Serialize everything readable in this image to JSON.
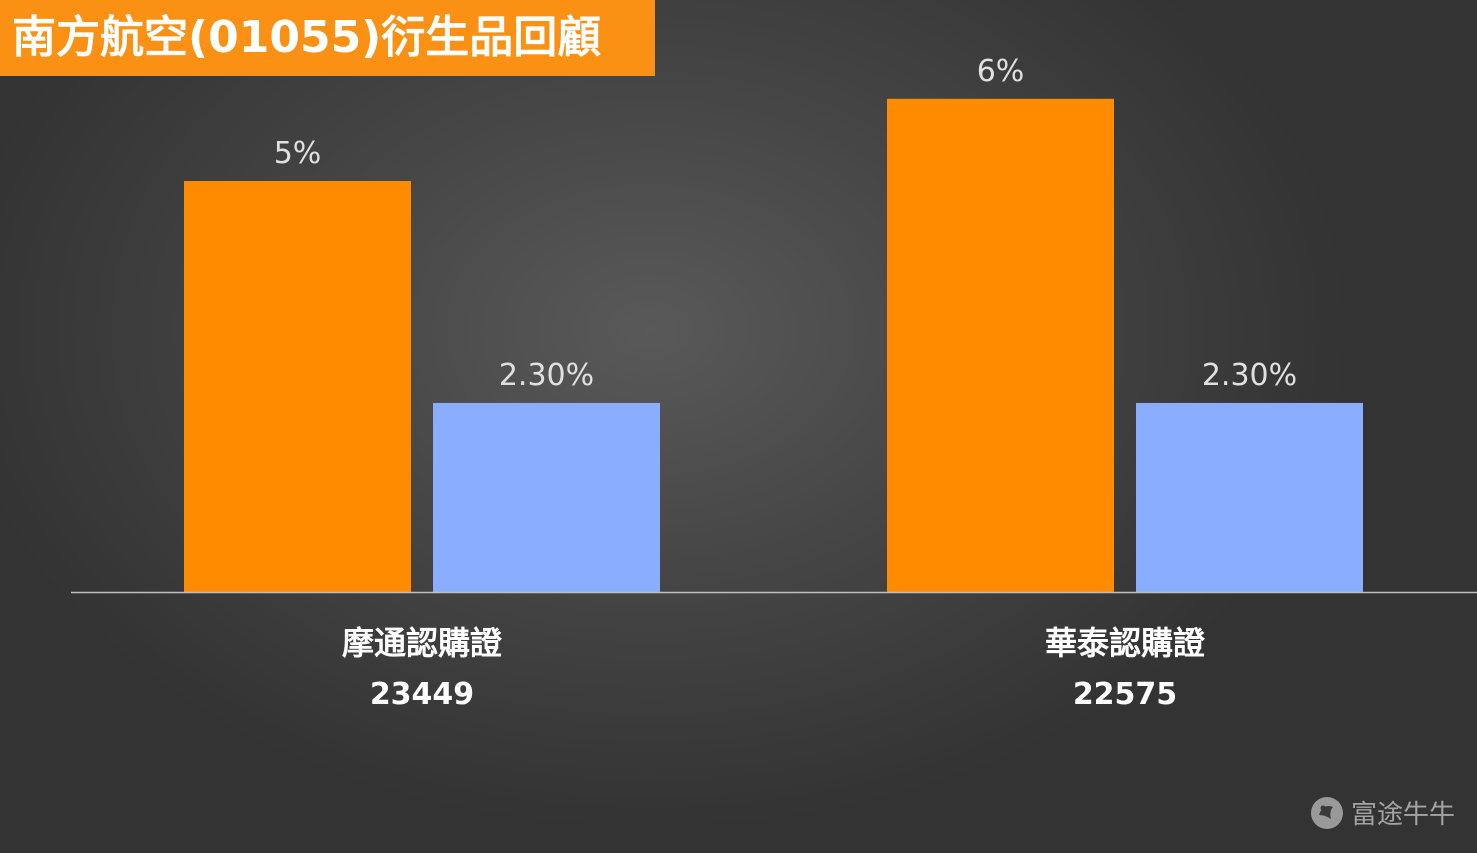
{
  "title": "南方航空(01055)衍生品回顧",
  "watermark": "富途牛牛",
  "colors": {
    "title_bg": "#fa9014",
    "bar_orange": "#ff8c00",
    "bar_blue": "#8aadff",
    "text": "#ffffff",
    "label_gray": "#e0e0e0",
    "axis": "#bfbfbf"
  },
  "chart_data": {
    "type": "bar",
    "categories": [
      {
        "name": "摩通認購證",
        "code": "23449"
      },
      {
        "name": "華泰認購證",
        "code": "22575"
      }
    ],
    "series": [
      {
        "values": [
          5,
          6
        ],
        "labels": [
          "5%",
          "6%"
        ],
        "color": "#ff8c00"
      },
      {
        "values": [
          2.3,
          2.3
        ],
        "labels": [
          "2.30%",
          "2.30%"
        ],
        "color": "#8aadff"
      }
    ],
    "ylim": [
      0,
      7
    ],
    "grid": false,
    "legend": "none"
  }
}
